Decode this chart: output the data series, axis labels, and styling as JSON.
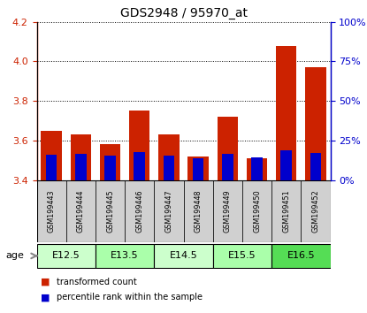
{
  "title": "GDS2948 / 95970_at",
  "samples": [
    "GSM199443",
    "GSM199444",
    "GSM199445",
    "GSM199446",
    "GSM199447",
    "GSM199448",
    "GSM199449",
    "GSM199450",
    "GSM199451",
    "GSM199452"
  ],
  "transformed_count": [
    3.65,
    3.63,
    3.58,
    3.75,
    3.63,
    3.52,
    3.72,
    3.51,
    4.08,
    3.97
  ],
  "percentile_rank_pct": [
    16.0,
    16.5,
    15.5,
    17.5,
    15.5,
    14.0,
    16.5,
    14.5,
    18.5,
    17.0
  ],
  "age_groups": [
    {
      "label": "E12.5",
      "start": 0,
      "end": 1,
      "color": "#ccffcc"
    },
    {
      "label": "E13.5",
      "start": 2,
      "end": 3,
      "color": "#aaffaa"
    },
    {
      "label": "E14.5",
      "start": 4,
      "end": 5,
      "color": "#ccffcc"
    },
    {
      "label": "E15.5",
      "start": 6,
      "end": 7,
      "color": "#aaffaa"
    },
    {
      "label": "E16.5",
      "start": 8,
      "end": 9,
      "color": "#55dd55"
    }
  ],
  "ylim_left": [
    3.4,
    4.2
  ],
  "ylim_right": [
    0,
    100
  ],
  "yticks_left": [
    3.4,
    3.6,
    3.8,
    4.0,
    4.2
  ],
  "yticks_right": [
    0,
    25,
    50,
    75,
    100
  ],
  "bar_color": "#cc2200",
  "percentile_color": "#0000cc",
  "bar_width": 0.7,
  "legend_items": [
    "transformed count",
    "percentile rank within the sample"
  ],
  "age_label": "age"
}
